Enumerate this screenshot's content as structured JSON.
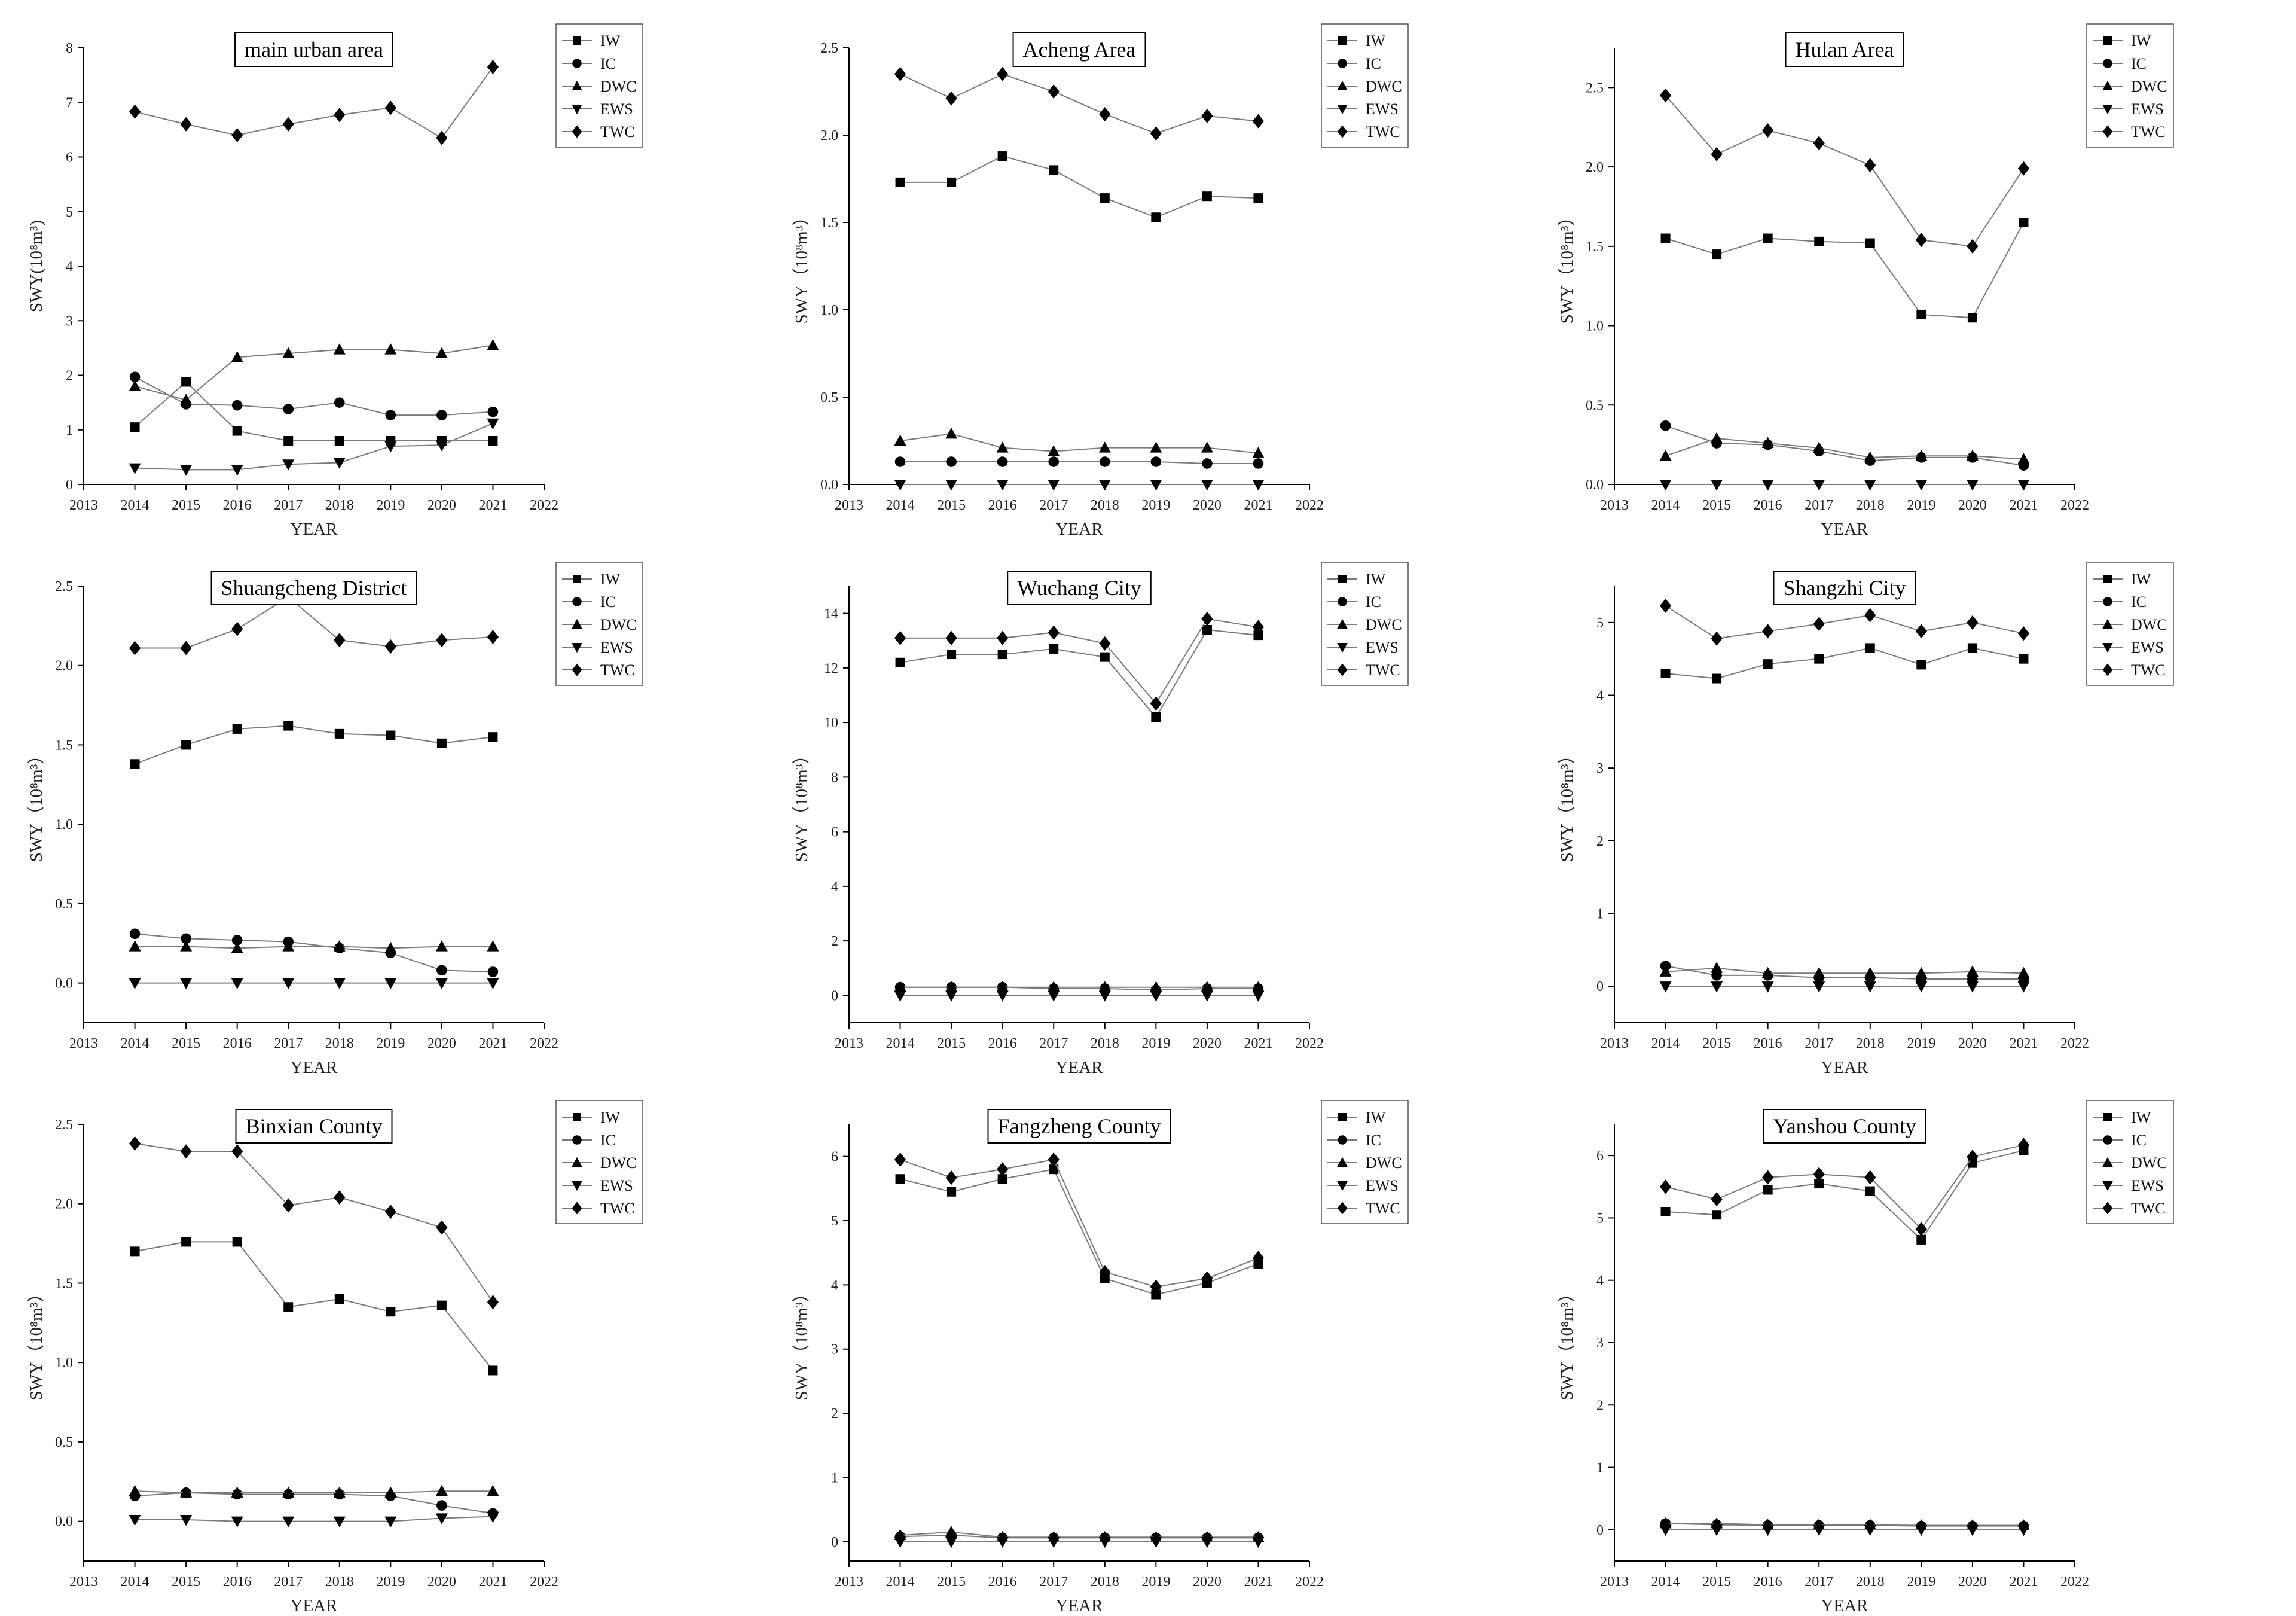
{
  "chart_data": [
    {
      "type": "line",
      "title": "main urban area",
      "xlabel": "YEAR",
      "ylabel": "SWY(10⁸m³)",
      "xlim": [
        2013,
        2022
      ],
      "ylim": [
        0,
        8
      ],
      "yticks": [
        "0",
        "1",
        "2",
        "3",
        "4",
        "5",
        "6",
        "7",
        "8"
      ],
      "legend": "top-right",
      "x": [
        2014,
        2015,
        2016,
        2017,
        2018,
        2019,
        2020,
        2021
      ],
      "series": [
        {
          "name": "IW",
          "marker": "square",
          "values": [
            1.05,
            1.88,
            0.98,
            0.8,
            0.8,
            0.8,
            0.8,
            0.8
          ]
        },
        {
          "name": "IC",
          "marker": "circle",
          "values": [
            1.97,
            1.47,
            1.45,
            1.38,
            1.5,
            1.27,
            1.27,
            1.33
          ]
        },
        {
          "name": "DWC",
          "marker": "triangle-up",
          "values": [
            1.8,
            1.55,
            2.33,
            2.4,
            2.47,
            2.47,
            2.4,
            2.55
          ]
        },
        {
          "name": "EWS",
          "marker": "triangle-down",
          "values": [
            0.3,
            0.27,
            0.27,
            0.37,
            0.4,
            0.7,
            0.72,
            1.12
          ]
        },
        {
          "name": "TWC",
          "marker": "diamond",
          "values": [
            6.83,
            6.6,
            6.4,
            6.6,
            6.77,
            6.9,
            6.35,
            7.65
          ]
        }
      ]
    },
    {
      "type": "line",
      "title": "Acheng Area",
      "xlabel": "YEAR",
      "ylabel": "SWY（10⁸m³）",
      "xlim": [
        2013,
        2022
      ],
      "ylim": [
        0,
        2.5
      ],
      "yticks": [
        "0.0",
        "0.5",
        "1.0",
        "1.5",
        "2.0",
        "2.5"
      ],
      "legend": "top-right",
      "x": [
        2014,
        2015,
        2016,
        2017,
        2018,
        2019,
        2020,
        2021
      ],
      "series": [
        {
          "name": "IW",
          "marker": "square",
          "values": [
            1.73,
            1.73,
            1.88,
            1.8,
            1.64,
            1.53,
            1.65,
            1.64
          ]
        },
        {
          "name": "IC",
          "marker": "circle",
          "values": [
            0.13,
            0.13,
            0.13,
            0.13,
            0.13,
            0.13,
            0.12,
            0.12
          ]
        },
        {
          "name": "DWC",
          "marker": "triangle-up",
          "values": [
            0.25,
            0.29,
            0.21,
            0.19,
            0.21,
            0.21,
            0.21,
            0.18
          ]
        },
        {
          "name": "EWS",
          "marker": "triangle-down",
          "values": [
            0.0,
            0.0,
            0.0,
            0.0,
            0.0,
            0.0,
            0.0,
            0.0
          ]
        },
        {
          "name": "TWC",
          "marker": "diamond",
          "values": [
            2.35,
            2.21,
            2.35,
            2.25,
            2.12,
            2.01,
            2.11,
            2.08
          ]
        }
      ]
    },
    {
      "type": "line",
      "title": "Hulan Area",
      "xlabel": "YEAR",
      "ylabel": "SWY（10⁸m³）",
      "xlim": [
        2013,
        2022
      ],
      "ylim": [
        0,
        2.75
      ],
      "yticks": [
        "0.0",
        "0.5",
        "1.0",
        "1.5",
        "2.0",
        "2.5"
      ],
      "legend": "top-right",
      "x": [
        2014,
        2015,
        2016,
        2017,
        2018,
        2019,
        2020,
        2021
      ],
      "series": [
        {
          "name": "IW",
          "marker": "square",
          "values": [
            1.55,
            1.45,
            1.55,
            1.53,
            1.52,
            1.07,
            1.05,
            1.65
          ]
        },
        {
          "name": "IC",
          "marker": "circle",
          "values": [
            0.37,
            0.26,
            0.25,
            0.21,
            0.15,
            0.17,
            0.17,
            0.12
          ]
        },
        {
          "name": "DWC",
          "marker": "triangle-up",
          "values": [
            0.18,
            0.29,
            0.26,
            0.23,
            0.17,
            0.18,
            0.18,
            0.16
          ]
        },
        {
          "name": "EWS",
          "marker": "triangle-down",
          "values": [
            0.0,
            0.0,
            0.0,
            0.0,
            0.0,
            0.0,
            0.0,
            0.0
          ]
        },
        {
          "name": "TWC",
          "marker": "diamond",
          "values": [
            2.45,
            2.08,
            2.23,
            2.15,
            2.01,
            1.54,
            1.5,
            1.99
          ]
        }
      ]
    },
    {
      "type": "line",
      "title": "Shuangcheng District",
      "xlabel": "YEAR",
      "ylabel": "SWY（10⁸m³）",
      "xlim": [
        2013,
        2022
      ],
      "ylim": [
        -0.25,
        2.5
      ],
      "yticks": [
        "0.0",
        "0.5",
        "1.0",
        "1.5",
        "2.0",
        "2.5"
      ],
      "legend": "top-right",
      "x": [
        2014,
        2015,
        2016,
        2017,
        2018,
        2019,
        2020,
        2021
      ],
      "series": [
        {
          "name": "IW",
          "marker": "square",
          "values": [
            1.38,
            1.5,
            1.6,
            1.62,
            1.57,
            1.56,
            1.51,
            1.55
          ]
        },
        {
          "name": "IC",
          "marker": "circle",
          "values": [
            0.31,
            0.28,
            0.27,
            0.26,
            0.22,
            0.19,
            0.08,
            0.07
          ]
        },
        {
          "name": "DWC",
          "marker": "triangle-up",
          "values": [
            0.23,
            0.23,
            0.22,
            0.23,
            0.23,
            0.22,
            0.23,
            0.23
          ]
        },
        {
          "name": "EWS",
          "marker": "triangle-down",
          "values": [
            0.0,
            0.0,
            0.0,
            0.0,
            0.0,
            0.0,
            0.0,
            0.0
          ]
        },
        {
          "name": "TWC",
          "marker": "diamond",
          "values": [
            2.11,
            2.11,
            2.23,
            2.43,
            2.16,
            2.12,
            2.16,
            2.18
          ]
        }
      ]
    },
    {
      "type": "line",
      "title": "Wuchang City",
      "xlabel": "YEAR",
      "ylabel": "SWY（10⁸m³）",
      "xlim": [
        2013,
        2022
      ],
      "ylim": [
        -1,
        15
      ],
      "yticks": [
        "0",
        "2",
        "4",
        "6",
        "8",
        "10",
        "12",
        "14"
      ],
      "legend": "top-right",
      "x": [
        2014,
        2015,
        2016,
        2017,
        2018,
        2019,
        2020,
        2021
      ],
      "series": [
        {
          "name": "IW",
          "marker": "square",
          "values": [
            12.2,
            12.5,
            12.5,
            12.7,
            12.4,
            10.2,
            13.4,
            13.2
          ]
        },
        {
          "name": "IC",
          "marker": "circle",
          "values": [
            0.3,
            0.3,
            0.3,
            0.25,
            0.25,
            0.2,
            0.25,
            0.25
          ]
        },
        {
          "name": "DWC",
          "marker": "triangle-up",
          "values": [
            0.3,
            0.3,
            0.3,
            0.3,
            0.3,
            0.3,
            0.3,
            0.3
          ]
        },
        {
          "name": "EWS",
          "marker": "triangle-down",
          "values": [
            0.0,
            0.0,
            0.0,
            0.0,
            0.0,
            0.0,
            0.0,
            0.0
          ]
        },
        {
          "name": "TWC",
          "marker": "diamond",
          "values": [
            13.1,
            13.1,
            13.1,
            13.3,
            12.9,
            10.7,
            13.8,
            13.5
          ]
        }
      ]
    },
    {
      "type": "line",
      "title": "Shangzhi City",
      "xlabel": "YEAR",
      "ylabel": "SWY（10⁸m³）",
      "xlim": [
        2013,
        2022
      ],
      "ylim": [
        -0.5,
        5.5
      ],
      "yticks": [
        "0",
        "1",
        "2",
        "3",
        "4",
        "5"
      ],
      "legend": "top-right",
      "x": [
        2014,
        2015,
        2016,
        2017,
        2018,
        2019,
        2020,
        2021
      ],
      "series": [
        {
          "name": "IW",
          "marker": "square",
          "values": [
            4.3,
            4.23,
            4.43,
            4.5,
            4.65,
            4.42,
            4.65,
            4.5
          ]
        },
        {
          "name": "IC",
          "marker": "circle",
          "values": [
            0.28,
            0.15,
            0.15,
            0.12,
            0.12,
            0.1,
            0.1,
            0.1
          ]
        },
        {
          "name": "DWC",
          "marker": "triangle-up",
          "values": [
            0.2,
            0.25,
            0.18,
            0.18,
            0.18,
            0.18,
            0.2,
            0.18
          ]
        },
        {
          "name": "EWS",
          "marker": "triangle-down",
          "values": [
            0.0,
            0.0,
            0.0,
            0.0,
            0.0,
            0.0,
            0.0,
            0.0
          ]
        },
        {
          "name": "TWC",
          "marker": "diamond",
          "values": [
            5.23,
            4.78,
            4.88,
            4.98,
            5.1,
            4.88,
            5.0,
            4.85
          ]
        }
      ]
    },
    {
      "type": "line",
      "title": "Binxian County",
      "xlabel": "YEAR",
      "ylabel": "SWY（10⁸m³）",
      "xlim": [
        2013,
        2022
      ],
      "ylim": [
        -0.25,
        2.5
      ],
      "yticks": [
        "0.0",
        "0.5",
        "1.0",
        "1.5",
        "2.0",
        "2.5"
      ],
      "legend": "top-right",
      "x": [
        2014,
        2015,
        2016,
        2017,
        2018,
        2019,
        2020,
        2021
      ],
      "series": [
        {
          "name": "IW",
          "marker": "square",
          "values": [
            1.7,
            1.76,
            1.76,
            1.35,
            1.4,
            1.32,
            1.36,
            0.95
          ]
        },
        {
          "name": "IC",
          "marker": "circle",
          "values": [
            0.16,
            0.18,
            0.17,
            0.17,
            0.17,
            0.16,
            0.1,
            0.05
          ]
        },
        {
          "name": "DWC",
          "marker": "triangle-up",
          "values": [
            0.19,
            0.18,
            0.18,
            0.18,
            0.18,
            0.18,
            0.19,
            0.19
          ]
        },
        {
          "name": "EWS",
          "marker": "triangle-down",
          "values": [
            0.01,
            0.01,
            0.0,
            0.0,
            0.0,
            0.0,
            0.02,
            0.03
          ]
        },
        {
          "name": "TWC",
          "marker": "diamond",
          "values": [
            2.38,
            2.33,
            2.33,
            1.99,
            2.04,
            1.95,
            1.85,
            1.38
          ]
        }
      ]
    },
    {
      "type": "line",
      "title": "Fangzheng County",
      "xlabel": "YEAR",
      "ylabel": "SWY（10⁸m³）",
      "xlim": [
        2013,
        2022
      ],
      "ylim": [
        -0.3,
        6.5
      ],
      "yticks": [
        "0",
        "1",
        "2",
        "3",
        "4",
        "5",
        "6"
      ],
      "legend": "top-right",
      "x": [
        2014,
        2015,
        2016,
        2017,
        2018,
        2019,
        2020,
        2021
      ],
      "series": [
        {
          "name": "IW",
          "marker": "square",
          "values": [
            5.65,
            5.45,
            5.65,
            5.8,
            4.1,
            3.85,
            4.03,
            4.33
          ]
        },
        {
          "name": "IC",
          "marker": "circle",
          "values": [
            0.08,
            0.1,
            0.06,
            0.06,
            0.06,
            0.06,
            0.06,
            0.06
          ]
        },
        {
          "name": "DWC",
          "marker": "triangle-up",
          "values": [
            0.1,
            0.15,
            0.07,
            0.07,
            0.07,
            0.07,
            0.07,
            0.07
          ]
        },
        {
          "name": "EWS",
          "marker": "triangle-down",
          "values": [
            0.0,
            0.0,
            0.0,
            0.0,
            0.0,
            0.0,
            0.0,
            0.0
          ]
        },
        {
          "name": "TWC",
          "marker": "diamond",
          "values": [
            5.95,
            5.67,
            5.8,
            5.95,
            4.2,
            3.97,
            4.1,
            4.42
          ]
        }
      ]
    },
    {
      "type": "line",
      "title": "Yanshou County",
      "xlabel": "YEAR",
      "ylabel": "SWY（10⁸m³）",
      "xlim": [
        2013,
        2022
      ],
      "ylim": [
        -0.5,
        6.5
      ],
      "yticks": [
        "0",
        "1",
        "2",
        "3",
        "4",
        "5",
        "6"
      ],
      "legend": "top-right",
      "x": [
        2014,
        2015,
        2016,
        2017,
        2018,
        2019,
        2020,
        2021
      ],
      "series": [
        {
          "name": "IW",
          "marker": "square",
          "values": [
            5.1,
            5.05,
            5.45,
            5.55,
            5.43,
            4.65,
            5.88,
            6.08
          ]
        },
        {
          "name": "IC",
          "marker": "circle",
          "values": [
            0.1,
            0.08,
            0.07,
            0.07,
            0.07,
            0.06,
            0.06,
            0.06
          ]
        },
        {
          "name": "DWC",
          "marker": "triangle-up",
          "values": [
            0.1,
            0.1,
            0.08,
            0.08,
            0.08,
            0.07,
            0.07,
            0.07
          ]
        },
        {
          "name": "EWS",
          "marker": "triangle-down",
          "values": [
            0.0,
            0.0,
            0.0,
            0.0,
            0.0,
            0.0,
            0.0,
            0.0
          ]
        },
        {
          "name": "TWC",
          "marker": "diamond",
          "values": [
            5.5,
            5.3,
            5.65,
            5.7,
            5.65,
            4.82,
            5.98,
            6.17
          ]
        }
      ]
    }
  ]
}
